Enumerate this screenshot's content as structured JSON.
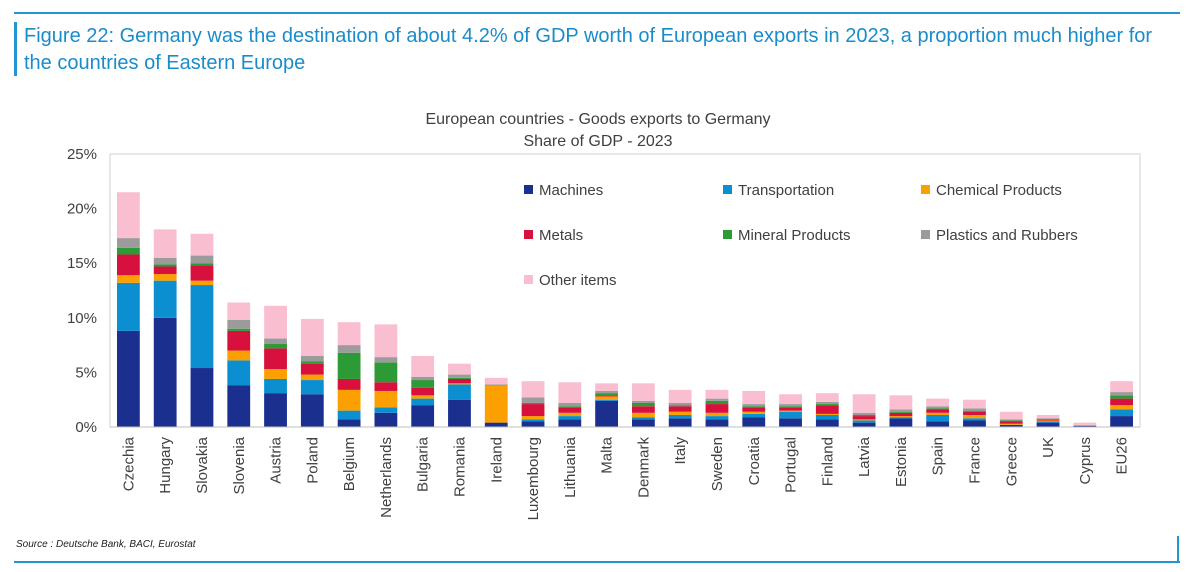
{
  "figure_title": "Figure 22: Germany was the destination of about 4.2% of GDP worth of European exports in 2023, a proportion much higher for the countries of Eastern Europe",
  "source": "Source : Deutsche Bank, BACI, Eurostat",
  "colors": {
    "Machines": "#1b2f8f",
    "Transportation": "#0c8fd1",
    "Chemical Products": "#fba000",
    "Metals": "#d8103d",
    "Mineral Products": "#2c9b35",
    "Plastics and Rubbers": "#9b9b9b",
    "Other items": "#f9bfd0",
    "accent": "#2296d3"
  },
  "chart_data": {
    "type": "bar",
    "stacked": true,
    "title": "European countries - Goods exports to Germany",
    "subtitle": "Share of GDP - 2023",
    "xlabel": "",
    "ylabel": "",
    "ylim": [
      0,
      25
    ],
    "yticks": [
      "0%",
      "5%",
      "10%",
      "15%",
      "20%",
      "25%"
    ],
    "ytick_values": [
      0,
      5,
      10,
      15,
      20,
      25
    ],
    "grid": false,
    "legend_position": "inside-top-right",
    "categories": [
      "Czechia",
      "Hungary",
      "Slovakia",
      "Slovenia",
      "Austria",
      "Poland",
      "Belgium",
      "Netherlands",
      "Bulgaria",
      "Romania",
      "Ireland",
      "Luxembourg",
      "Lithuania",
      "Malta",
      "Denmark",
      "Italy",
      "Sweden",
      "Croatia",
      "Portugal",
      "Finland",
      "Latvia",
      "Estonia",
      "Spain",
      "France",
      "Greece",
      "UK",
      "Cyprus",
      "EU26"
    ],
    "series": [
      {
        "name": "Machines",
        "values": [
          8.8,
          10.0,
          5.4,
          3.8,
          3.1,
          3.0,
          0.7,
          1.3,
          2.0,
          2.5,
          0.4,
          0.5,
          0.7,
          2.4,
          0.7,
          0.8,
          0.7,
          0.9,
          0.8,
          0.7,
          0.4,
          0.8,
          0.5,
          0.6,
          0.2,
          0.4,
          0.1,
          1.0
        ]
      },
      {
        "name": "Transportation",
        "values": [
          4.4,
          3.4,
          7.6,
          2.3,
          1.3,
          1.3,
          0.8,
          0.5,
          0.6,
          1.4,
          0.0,
          0.2,
          0.3,
          0.1,
          0.2,
          0.3,
          0.3,
          0.3,
          0.6,
          0.4,
          0.2,
          0.1,
          0.6,
          0.2,
          0.0,
          0.1,
          0.0,
          0.6
        ]
      },
      {
        "name": "Chemical Products",
        "values": [
          0.7,
          0.6,
          0.4,
          0.9,
          0.9,
          0.5,
          1.9,
          1.5,
          0.3,
          0.1,
          3.4,
          0.3,
          0.3,
          0.3,
          0.4,
          0.3,
          0.3,
          0.2,
          0.1,
          0.1,
          0.1,
          0.1,
          0.2,
          0.3,
          0.1,
          0.1,
          0.1,
          0.4
        ]
      },
      {
        "name": "Metals",
        "values": [
          1.9,
          0.7,
          1.4,
          1.8,
          1.9,
          1.0,
          1.0,
          0.8,
          0.7,
          0.4,
          0.0,
          1.1,
          0.5,
          0.1,
          0.6,
          0.5,
          0.8,
          0.4,
          0.3,
          0.8,
          0.3,
          0.3,
          0.3,
          0.3,
          0.2,
          0.1,
          0.0,
          0.6
        ]
      },
      {
        "name": "Mineral Products",
        "values": [
          0.6,
          0.2,
          0.2,
          0.2,
          0.4,
          0.2,
          2.4,
          1.8,
          0.7,
          0.1,
          0.0,
          0.1,
          0.1,
          0.2,
          0.3,
          0.1,
          0.3,
          0.1,
          0.1,
          0.1,
          0.1,
          0.1,
          0.1,
          0.1,
          0.1,
          0.0,
          0.0,
          0.3
        ]
      },
      {
        "name": "Plastics and Rubbers",
        "values": [
          0.9,
          0.6,
          0.7,
          0.8,
          0.5,
          0.5,
          0.7,
          0.5,
          0.3,
          0.3,
          0.1,
          0.5,
          0.3,
          0.2,
          0.2,
          0.2,
          0.2,
          0.2,
          0.2,
          0.2,
          0.2,
          0.2,
          0.2,
          0.2,
          0.1,
          0.1,
          0.0,
          0.3
        ]
      },
      {
        "name": "Other items",
        "values": [
          4.2,
          2.6,
          2.0,
          1.6,
          3.0,
          3.4,
          2.1,
          3.0,
          1.9,
          1.0,
          0.6,
          1.5,
          1.9,
          0.7,
          1.6,
          1.2,
          0.8,
          1.2,
          0.9,
          0.8,
          1.7,
          1.3,
          0.7,
          0.8,
          0.7,
          0.3,
          0.2,
          1.0
        ]
      }
    ]
  }
}
